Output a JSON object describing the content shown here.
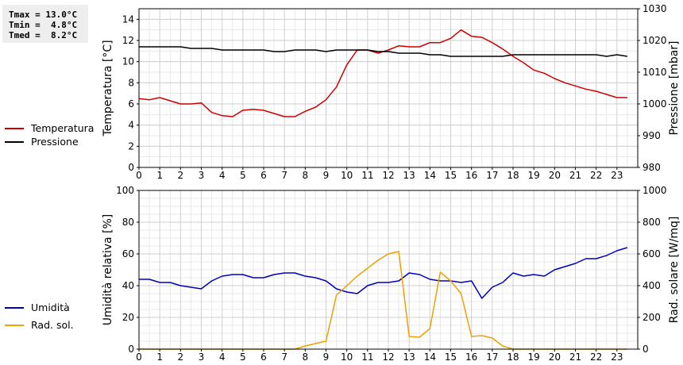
{
  "stats": {
    "tmax": "Tmax = 13.0°C",
    "tmin": "Tmin =  4.8°C",
    "tmed": "Tmed =  8.2°C"
  },
  "legend": {
    "top": [
      {
        "label": "Temperatura",
        "color": "#cc0000"
      },
      {
        "label": "Pressione",
        "color": "#000000"
      }
    ],
    "bottom": [
      {
        "label": "Umidità",
        "color": "#0000bb"
      },
      {
        "label": "Rad. sol.",
        "color": "#f0a000"
      }
    ]
  },
  "chart_data": [
    {
      "type": "line",
      "ylabel": "Temperatura [°C]",
      "y2label": "Pressione [mbar]",
      "xlim": [
        0,
        24
      ],
      "ylim": [
        0,
        15
      ],
      "y2lim": [
        980,
        1030
      ],
      "xticks": [
        "0",
        "1",
        "2",
        "3",
        "4",
        "5",
        "6",
        "7",
        "8",
        "9",
        "10",
        "11",
        "12",
        "13",
        "14",
        "15",
        "16",
        "17",
        "18",
        "19",
        "20",
        "21",
        "22",
        "23"
      ],
      "yticks": [
        "0",
        "2",
        "4",
        "6",
        "8",
        "10",
        "12",
        "14"
      ],
      "y2ticks": [
        "980",
        "990",
        "1000",
        "1010",
        "1020",
        "1030"
      ],
      "grid": true,
      "series": [
        {
          "name": "Temperatura",
          "axis": "left",
          "color": "#cc0000",
          "x": [
            0,
            0.5,
            1,
            1.5,
            2,
            2.5,
            3,
            3.5,
            4,
            4.5,
            5,
            5.5,
            6,
            6.5,
            7,
            7.5,
            8,
            8.5,
            9,
            9.5,
            10,
            10.5,
            11,
            11.5,
            12,
            12.5,
            13,
            13.5,
            14,
            14.5,
            15,
            15.5,
            16,
            16.5,
            17,
            17.5,
            18,
            18.5,
            19,
            19.5,
            20,
            20.5,
            21,
            21.5,
            22,
            22.5,
            23,
            23.5
          ],
          "y": [
            6.5,
            6.4,
            6.6,
            6.3,
            6.0,
            6.0,
            6.1,
            5.2,
            4.9,
            4.8,
            5.4,
            5.5,
            5.4,
            5.1,
            4.8,
            4.8,
            5.3,
            5.7,
            6.4,
            7.6,
            9.7,
            11.1,
            11.1,
            10.8,
            11.1,
            11.5,
            11.4,
            11.4,
            11.8,
            11.8,
            12.2,
            13.0,
            12.4,
            12.3,
            11.8,
            11.2,
            10.5,
            9.9,
            9.2,
            8.9,
            8.4,
            8.0,
            7.7,
            7.4,
            7.2,
            6.9,
            6.6,
            6.6
          ]
        },
        {
          "name": "Pressione",
          "axis": "right",
          "color": "#000000",
          "x": [
            0,
            0.5,
            1,
            1.5,
            2,
            2.5,
            3,
            3.5,
            4,
            4.5,
            5,
            5.5,
            6,
            6.5,
            7,
            7.5,
            8,
            8.5,
            9,
            9.5,
            10,
            10.5,
            11,
            11.5,
            12,
            12.5,
            13,
            13.5,
            14,
            14.5,
            15,
            15.5,
            16,
            16.5,
            17,
            17.5,
            18,
            18.5,
            19,
            19.5,
            20,
            20.5,
            21,
            21.5,
            22,
            22.5,
            23,
            23.5
          ],
          "y": [
            1018,
            1018,
            1018,
            1018,
            1018,
            1017.5,
            1017.5,
            1017.5,
            1017,
            1017,
            1017,
            1017,
            1017,
            1016.5,
            1016.5,
            1017,
            1017,
            1017,
            1016.5,
            1017,
            1017,
            1017,
            1017,
            1016.5,
            1016.5,
            1016,
            1016,
            1016,
            1015.5,
            1015.5,
            1015,
            1015,
            1015,
            1015,
            1015,
            1015,
            1015.5,
            1015.5,
            1015.5,
            1015.5,
            1015.5,
            1015.5,
            1015.5,
            1015.5,
            1015.5,
            1015,
            1015.5,
            1015
          ]
        }
      ]
    },
    {
      "type": "line",
      "ylabel": "Umidità relativa [%]",
      "y2label": "Rad. solare [W/mq]",
      "xlim": [
        0,
        24
      ],
      "ylim": [
        0,
        100
      ],
      "y2lim": [
        0,
        1000
      ],
      "xticks": [
        "0",
        "1",
        "2",
        "3",
        "4",
        "5",
        "6",
        "7",
        "8",
        "9",
        "10",
        "11",
        "12",
        "13",
        "14",
        "15",
        "16",
        "17",
        "18",
        "19",
        "20",
        "21",
        "22",
        "23"
      ],
      "yticks": [
        "0",
        "20",
        "40",
        "60",
        "80",
        "100"
      ],
      "y2ticks": [
        "0",
        "200",
        "400",
        "600",
        "800",
        "1000"
      ],
      "grid": true,
      "series": [
        {
          "name": "Umidità",
          "axis": "left",
          "color": "#0000bb",
          "x": [
            0,
            0.5,
            1,
            1.5,
            2,
            2.5,
            3,
            3.5,
            4,
            4.5,
            5,
            5.5,
            6,
            6.5,
            7,
            7.5,
            8,
            8.5,
            9,
            9.5,
            10,
            10.5,
            11,
            11.5,
            12,
            12.5,
            13,
            13.5,
            14,
            14.5,
            15,
            15.5,
            16,
            16.5,
            17,
            17.5,
            18,
            18.5,
            19,
            19.5,
            20,
            20.5,
            21,
            21.5,
            22,
            22.5,
            23,
            23.5
          ],
          "y": [
            44,
            44,
            42,
            42,
            40,
            39,
            38,
            43,
            46,
            47,
            47,
            45,
            45,
            47,
            48,
            48,
            46,
            45,
            43,
            38,
            36,
            35,
            40,
            42,
            42,
            43,
            48,
            47,
            44,
            43,
            43,
            42,
            43,
            32,
            39,
            42,
            48,
            46,
            47,
            46,
            50,
            52,
            54,
            57,
            57,
            59,
            62,
            64
          ]
        },
        {
          "name": "Rad. sol.",
          "axis": "right",
          "color": "#f0a000",
          "x": [
            0,
            1,
            2,
            3,
            4,
            5,
            6,
            7,
            7.5,
            8,
            9,
            9.5,
            10,
            10.5,
            11,
            11.5,
            12,
            12.5,
            13,
            13.5,
            14,
            14.5,
            15,
            15.5,
            16,
            16.5,
            17,
            17.5,
            18,
            18.5,
            19,
            20,
            21,
            22,
            23,
            23.5
          ],
          "y": [
            0,
            0,
            0,
            0,
            0,
            0,
            0,
            0,
            0,
            20,
            50,
            340,
            400,
            460,
            510,
            560,
            600,
            615,
            80,
            75,
            130,
            485,
            430,
            350,
            80,
            85,
            70,
            20,
            0,
            0,
            0,
            0,
            0,
            0,
            0,
            0
          ]
        }
      ]
    }
  ]
}
